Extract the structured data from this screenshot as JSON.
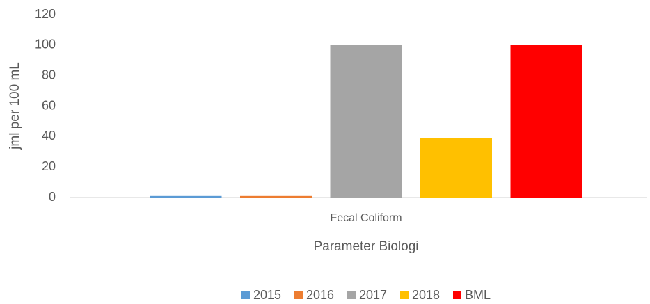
{
  "chart_data": {
    "type": "bar",
    "categories": [
      "Fecal Coliform"
    ],
    "series": [
      {
        "name": "2015",
        "color": "#5b9bd5",
        "values": [
          1
        ]
      },
      {
        "name": "2016",
        "color": "#ed7d31",
        "values": [
          1
        ]
      },
      {
        "name": "2017",
        "color": "#a5a5a5",
        "values": [
          100
        ]
      },
      {
        "name": "2018",
        "color": "#ffc000",
        "values": [
          39
        ]
      },
      {
        "name": "BML",
        "color": "#ff0000",
        "values": [
          100
        ]
      }
    ],
    "xlabel": "Parameter Biologi",
    "ylabel": "jml per 100 mL",
    "ylim": [
      0,
      120
    ],
    "yticks": [
      0,
      20,
      40,
      60,
      80,
      100,
      120
    ],
    "grid": false,
    "legend": "bottom"
  }
}
